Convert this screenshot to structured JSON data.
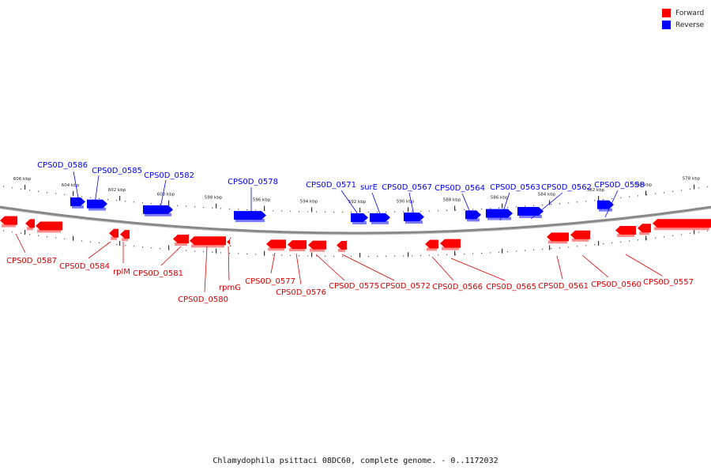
{
  "legend": [
    {
      "label": "Forward",
      "color": "#ff0000"
    },
    {
      "label": "Reverse",
      "color": "#0000ff"
    }
  ],
  "caption": "Chlamydophila psittaci 08DC60, complete genome. - 0..1172032",
  "colors": {
    "forward": "#ff0000",
    "reverse": "#0000ff",
    "backbone": "#888888"
  },
  "ticks": [
    "606 kbp",
    "604 kbp",
    "602 kbp",
    "600 kbp",
    "598 kbp",
    "596 kbp",
    "594 kbp",
    "592 kbp",
    "590 kbp",
    "588 kbp",
    "586 kbp",
    "584 kbp",
    "582 kbp",
    "580 kbp",
    "578 kbp"
  ],
  "genes": {
    "reverse": [
      "CPS0D_0586",
      "CPS0D_0585",
      "CPS0D_0582",
      "CPS0D_0578",
      "CPS0D_0571",
      "surE",
      "CPS0D_0567",
      "CPS0D_0564",
      "CPS0D_0563",
      "CPS0D_0562",
      "CPS0D_0558"
    ],
    "forward": [
      "CPS0D_0587",
      "CPS0D_0584",
      "rplM",
      "CPS0D_0581",
      "CPS0D_0580",
      "rpmG",
      "CPS0D_0577",
      "CPS0D_0576",
      "CPS0D_0575",
      "CPS0D_0572",
      "CPS0D_0566",
      "CPS0D_0565",
      "CPS0D_0561",
      "CPS0D_0560",
      "CPS0D_0557"
    ]
  }
}
